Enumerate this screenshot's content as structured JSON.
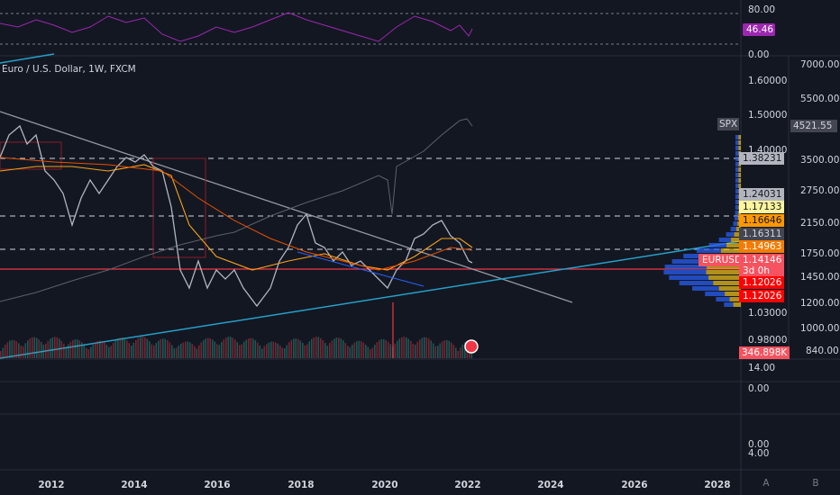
{
  "header": {
    "title": "Euro / U.S. Dollar, 1W, FXCM"
  },
  "rsi_pane": {
    "axis_labels": [
      "80.00",
      "0.00"
    ],
    "value_tag": "46.46"
  },
  "eurusd_axis": {
    "labels": [
      "1.60000",
      "1.50000",
      "1.40000",
      "1.03000",
      "0.98000"
    ]
  },
  "eurusd_tags": [
    "1.38231",
    "1.24031",
    "1.17133",
    "1.16646",
    "1.16311",
    "1.14963",
    "1.14146",
    "1.12026",
    "1.12026"
  ],
  "symbol_tag": {
    "name": "EURUSD",
    "countdown": "3d 0h"
  },
  "spx_axis": {
    "labels": [
      "7000.00",
      "5500.00",
      "3500.00",
      "2750.00",
      "2150.00",
      "1750.00",
      "1450.00",
      "1200.00",
      "1000.00",
      "840.00"
    ],
    "tag": "4521.55",
    "name": "SPX"
  },
  "volume": {
    "tag": "346.898K"
  },
  "lower_panes": {
    "labels": [
      "14.00",
      "0.00",
      "0.00",
      "4.00"
    ]
  },
  "time_axis": {
    "labels": [
      "2012",
      "2014",
      "2016",
      "2018",
      "2020",
      "2022",
      "2024",
      "2026",
      "2028"
    ]
  },
  "scale_buttons": [
    "A",
    "B"
  ]
}
